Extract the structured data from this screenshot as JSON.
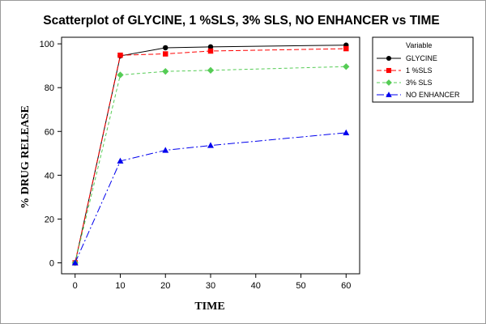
{
  "chart_data": {
    "type": "line",
    "title": "Scatterplot of GLYCINE, 1 %SLS, 3% SLS, NO ENHANCER vs TIME",
    "xlabel": "TIME",
    "ylabel": "% DRUG RELEASE",
    "xlim": [
      -3,
      63
    ],
    "ylim": [
      -5,
      103
    ],
    "xticks": [
      0,
      10,
      20,
      30,
      40,
      50,
      60
    ],
    "yticks": [
      0,
      20,
      40,
      60,
      80,
      100
    ],
    "grid": false,
    "legend": {
      "title": "Variable",
      "placement": "top-right-outside"
    },
    "x": [
      0,
      10,
      20,
      30,
      60
    ],
    "series": [
      {
        "name": "GLYCINE",
        "values": [
          0,
          94.5,
          98.2,
          98.6,
          99.4
        ],
        "color": "#000000",
        "marker": "circle",
        "line": "solid"
      },
      {
        "name": "1 %SLS",
        "values": [
          0,
          94.8,
          95.4,
          96.7,
          97.8
        ],
        "color": "#ff0000",
        "marker": "square",
        "line": "dashed"
      },
      {
        "name": "3% SLS",
        "values": [
          0,
          85.8,
          87.4,
          87.9,
          89.6
        ],
        "color": "#55cc55",
        "marker": "diamond",
        "line": "dashed-short"
      },
      {
        "name": "NO ENHANCER",
        "values": [
          0,
          46.5,
          51.4,
          53.6,
          59.4
        ],
        "color": "#0000ee",
        "marker": "triangle",
        "line": "dashdot"
      }
    ]
  }
}
